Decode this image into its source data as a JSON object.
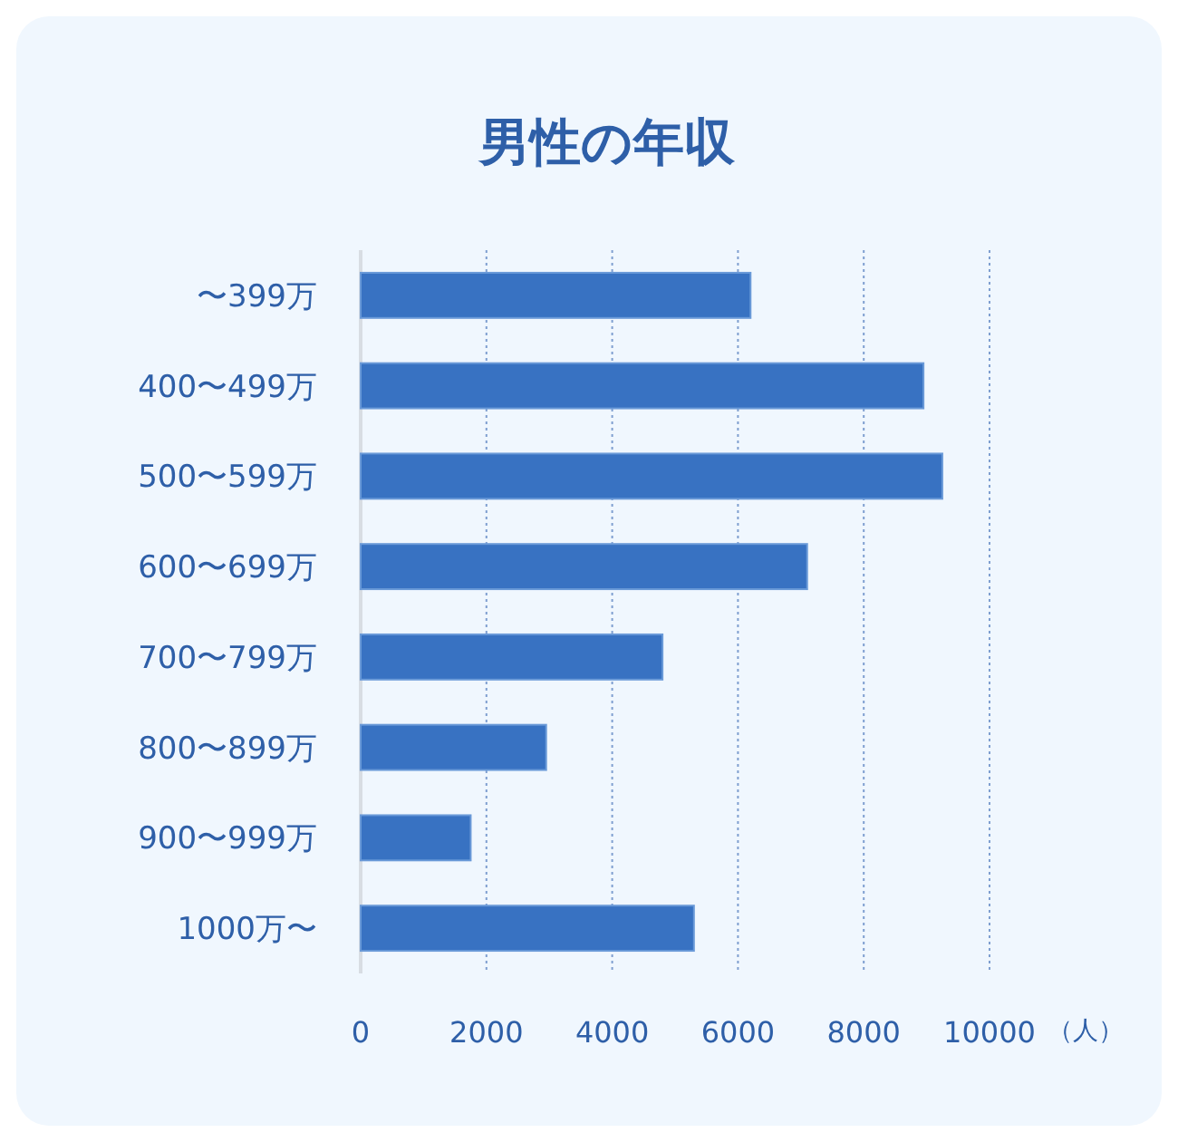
{
  "chart_data": {
    "type": "bar",
    "orientation": "horizontal",
    "title": "男性の年収",
    "xlabel": "（人）",
    "categories": [
      "〜399万",
      "400〜499万",
      "500〜599万",
      "600〜699万",
      "700〜799万",
      "800〜899万",
      "900〜999万",
      "1000万〜"
    ],
    "values": [
      6200,
      8950,
      9250,
      7100,
      4800,
      2950,
      1750,
      5300
    ],
    "color": "#3872c2",
    "xlim": [
      0,
      10000
    ],
    "xticks": [
      0,
      2000,
      4000,
      6000,
      8000,
      10000
    ],
    "grid": "x"
  }
}
